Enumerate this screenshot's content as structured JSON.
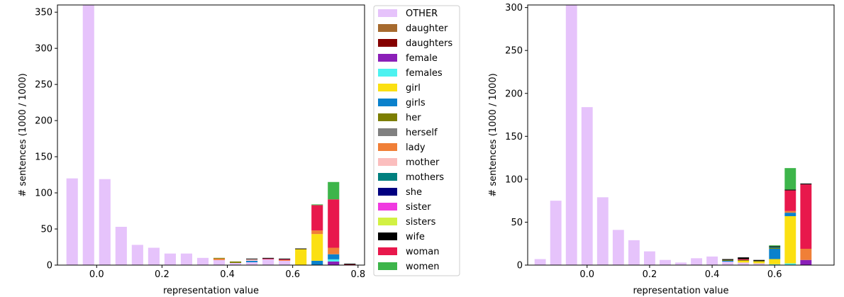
{
  "colors": {
    "OTHER": "#e6c3fb",
    "daughter": "#a66a2e",
    "daughters": "#850000",
    "female": "#8b1fb8",
    "females": "#4cf2f0",
    "girl": "#fbe012",
    "girls": "#0a81cc",
    "her": "#7c7e02",
    "herself": "#808080",
    "lady": "#f07f37",
    "mother": "#fbbebe",
    "mothers": "#00807f",
    "she": "#010080",
    "sister": "#f03ae0",
    "sisters": "#d2f143",
    "wife": "#000000",
    "woman": "#e8184c",
    "women": "#3db54a"
  },
  "legend": {
    "placement": "center-right",
    "entries": [
      "OTHER",
      "daughter",
      "daughters",
      "female",
      "females",
      "girl",
      "girls",
      "her",
      "herself",
      "lady",
      "mother",
      "mothers",
      "she",
      "sister",
      "sisters",
      "wife",
      "woman",
      "women"
    ]
  },
  "chart_data": [
    {
      "type": "bar",
      "stacked": true,
      "xlabel": "representation value",
      "ylabel": "# sentences (1000 / 1000)",
      "xlim": [
        -0.12,
        0.82
      ],
      "ylim": [
        0,
        360
      ],
      "xticks": [
        0.0,
        0.2,
        0.4,
        0.6,
        0.8
      ],
      "xtick_labels": [
        "0.0",
        "0.2",
        "0.4",
        "0.6",
        "0.8"
      ],
      "yticks": [
        0,
        50,
        100,
        150,
        200,
        250,
        300,
        350
      ],
      "ytick_labels": [
        "0",
        "50",
        "100",
        "150",
        "200",
        "250",
        "300",
        "350"
      ],
      "bar_width": 0.035,
      "x": [
        -0.075,
        -0.025,
        0.025,
        0.075,
        0.125,
        0.175,
        0.225,
        0.275,
        0.325,
        0.375,
        0.425,
        0.475,
        0.525,
        0.575,
        0.625,
        0.675,
        0.725,
        0.775
      ],
      "series": [
        {
          "name": "OTHER",
          "values": [
            120,
            360,
            119,
            53,
            28,
            24,
            16,
            16,
            10,
            7,
            3,
            4,
            8,
            6,
            0,
            0,
            0,
            0
          ]
        },
        {
          "name": "female",
          "values": [
            0,
            0,
            0,
            0,
            0,
            0,
            0,
            0,
            0,
            0,
            0,
            0,
            0,
            0,
            0,
            0,
            5,
            0
          ]
        },
        {
          "name": "females",
          "values": [
            0,
            0,
            0,
            0,
            0,
            0,
            0,
            0,
            0,
            0,
            0,
            0,
            0,
            0,
            0,
            0,
            3,
            0
          ]
        },
        {
          "name": "girls",
          "values": [
            0,
            0,
            0,
            0,
            0,
            0,
            0,
            0,
            0,
            0,
            0,
            2,
            0,
            0,
            0,
            6,
            7,
            0
          ]
        },
        {
          "name": "girl",
          "values": [
            0,
            0,
            0,
            0,
            0,
            0,
            0,
            0,
            0,
            0,
            0,
            0,
            0,
            0,
            22,
            37,
            0,
            0
          ]
        },
        {
          "name": "lady",
          "values": [
            0,
            0,
            0,
            0,
            0,
            0,
            0,
            0,
            0,
            2,
            0,
            0,
            0,
            1,
            0,
            5,
            9,
            0
          ]
        },
        {
          "name": "mother",
          "values": [
            0,
            0,
            0,
            0,
            0,
            0,
            0,
            0,
            0,
            0,
            0,
            2,
            0,
            0,
            0,
            0,
            0,
            0
          ]
        },
        {
          "name": "her",
          "values": [
            0,
            0,
            0,
            0,
            0,
            0,
            0,
            0,
            0,
            1,
            2,
            0,
            0,
            0,
            0,
            0,
            0,
            0
          ]
        },
        {
          "name": "woman",
          "values": [
            0,
            0,
            0,
            0,
            0,
            0,
            0,
            0,
            0,
            0,
            0,
            0,
            1,
            1,
            0,
            35,
            67,
            1
          ]
        },
        {
          "name": "wife",
          "values": [
            0,
            0,
            0,
            0,
            0,
            0,
            0,
            0,
            0,
            0,
            0,
            1,
            1,
            1,
            1,
            0,
            0,
            1
          ]
        },
        {
          "name": "women",
          "values": [
            0,
            0,
            0,
            0,
            0,
            0,
            0,
            0,
            0,
            0,
            0,
            0,
            0,
            0,
            0,
            1,
            24,
            0
          ]
        }
      ]
    },
    {
      "type": "bar",
      "stacked": true,
      "xlabel": "representation value",
      "ylabel": "# sentences (1000 / 1000)",
      "xlim": [
        -0.19,
        0.79
      ],
      "ylim": [
        0,
        303
      ],
      "xticks": [
        0.0,
        0.2,
        0.4,
        0.6
      ],
      "xtick_labels": [
        "0.0",
        "0.2",
        "0.4",
        "0.6"
      ],
      "yticks": [
        0,
        50,
        100,
        150,
        200,
        250,
        300
      ],
      "ytick_labels": [
        "0",
        "50",
        "100",
        "150",
        "200",
        "250",
        "300"
      ],
      "bar_width": 0.036,
      "x": [
        -0.15,
        -0.1,
        -0.05,
        0.0,
        0.05,
        0.1,
        0.15,
        0.2,
        0.25,
        0.3,
        0.35,
        0.4,
        0.45,
        0.5,
        0.55,
        0.6,
        0.65,
        0.7
      ],
      "series": [
        {
          "name": "OTHER",
          "values": [
            7,
            75,
            303,
            184,
            79,
            41,
            29,
            16,
            6,
            3,
            8,
            10,
            4,
            3,
            2,
            0,
            0,
            0
          ]
        },
        {
          "name": "female",
          "values": [
            0,
            0,
            0,
            0,
            0,
            0,
            0,
            0,
            0,
            0,
            0,
            0,
            0,
            0,
            0,
            0,
            0,
            6
          ]
        },
        {
          "name": "females",
          "values": [
            0,
            0,
            0,
            0,
            0,
            0,
            0,
            0,
            0,
            0,
            0,
            0,
            0,
            0,
            0,
            1,
            2,
            0
          ]
        },
        {
          "name": "girl",
          "values": [
            0,
            0,
            0,
            0,
            0,
            0,
            0,
            0,
            0,
            0,
            0,
            0,
            0,
            2,
            2,
            6,
            55,
            0
          ]
        },
        {
          "name": "girls",
          "values": [
            0,
            0,
            0,
            0,
            0,
            0,
            0,
            0,
            0,
            0,
            0,
            0,
            1,
            0,
            0,
            12,
            4,
            0
          ]
        },
        {
          "name": "lady",
          "values": [
            0,
            0,
            0,
            0,
            0,
            0,
            0,
            0,
            0,
            0,
            0,
            0,
            0,
            0,
            0,
            0,
            2,
            13
          ]
        },
        {
          "name": "her",
          "values": [
            0,
            0,
            0,
            0,
            0,
            0,
            0,
            0,
            0,
            0,
            0,
            0,
            1,
            1,
            1,
            1,
            0,
            0
          ]
        },
        {
          "name": "mothers",
          "values": [
            0,
            0,
            0,
            0,
            0,
            0,
            0,
            0,
            0,
            0,
            0,
            0,
            0,
            0,
            0,
            1,
            0,
            0
          ]
        },
        {
          "name": "woman",
          "values": [
            0,
            0,
            0,
            0,
            0,
            0,
            0,
            0,
            0,
            0,
            0,
            0,
            0,
            1,
            0,
            0,
            24,
            75
          ]
        },
        {
          "name": "wife",
          "values": [
            0,
            0,
            0,
            0,
            0,
            0,
            0,
            0,
            0,
            0,
            0,
            0,
            1,
            2,
            1,
            1,
            1,
            1
          ]
        },
        {
          "name": "women",
          "values": [
            0,
            0,
            0,
            0,
            0,
            0,
            0,
            0,
            0,
            0,
            0,
            0,
            0,
            0,
            0,
            1,
            25,
            0
          ]
        }
      ]
    }
  ]
}
